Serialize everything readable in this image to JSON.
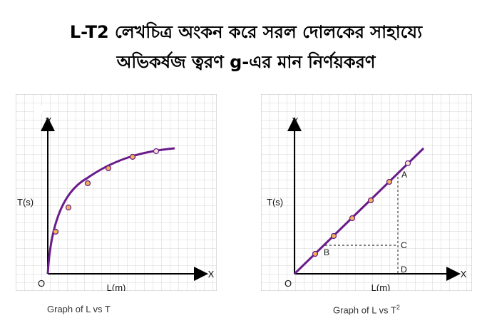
{
  "header": {
    "title_line1": "L-T2 লেখচিত্র অংকন করে সরল দোলকের সাহায্যে",
    "title_line2": "অভিকর্ষজ ত্বরণ g-এর মান নির্ণয়করণ"
  },
  "graph_left": {
    "y_axis_letter": "Y",
    "x_axis_letter": "X",
    "origin": "O",
    "y_label": "T(s)",
    "x_label": "L(m)",
    "caption": "Graph of L vs T",
    "curve_color": "#6a1b8a",
    "point_color": "#f2b35a"
  },
  "graph_right": {
    "y_axis_letter": "Y",
    "x_axis_letter": "X",
    "origin": "O",
    "y_label": "T(s)",
    "x_label": "L(m)",
    "point_a": "A",
    "point_b": "B",
    "point_c": "C",
    "point_d": "D",
    "caption_text": "Graph of L vs T",
    "caption_sup": "2",
    "line_color": "#6a1b8a",
    "point_color": "#f2b35a"
  }
}
